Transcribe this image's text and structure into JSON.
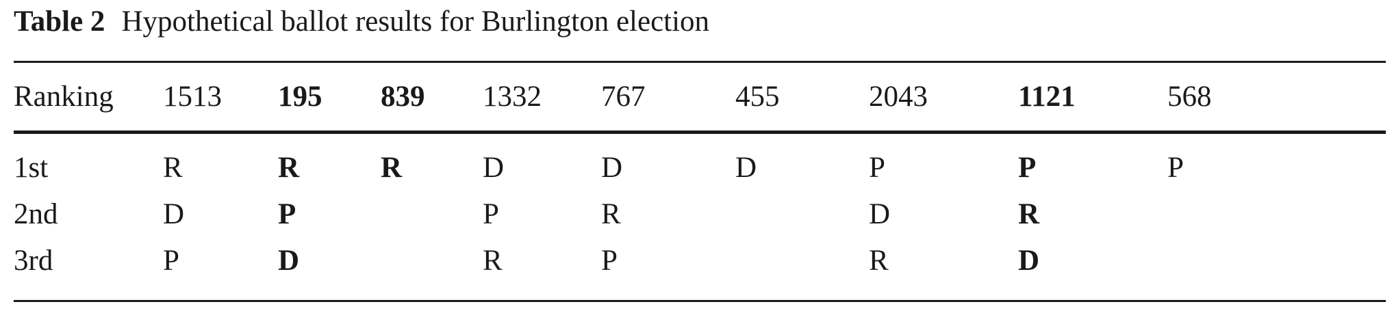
{
  "caption": {
    "label": "Table 2",
    "text": "Hypothetical ballot results for Burlington election"
  },
  "table": {
    "header": [
      "Ranking",
      "1513",
      "195",
      "839",
      "1332",
      "767",
      "455",
      "2043",
      "1121",
      "568"
    ],
    "bold_columns": [
      2,
      3,
      8
    ],
    "rows": [
      [
        "1st",
        "R",
        "R",
        "R",
        "D",
        "D",
        "D",
        "P",
        "P",
        "P"
      ],
      [
        "2nd",
        "D",
        "P",
        "",
        "P",
        "R",
        "",
        "D",
        "R",
        ""
      ],
      [
        "3rd",
        "P",
        "D",
        "",
        "R",
        "P",
        "",
        "R",
        "D",
        ""
      ]
    ]
  }
}
